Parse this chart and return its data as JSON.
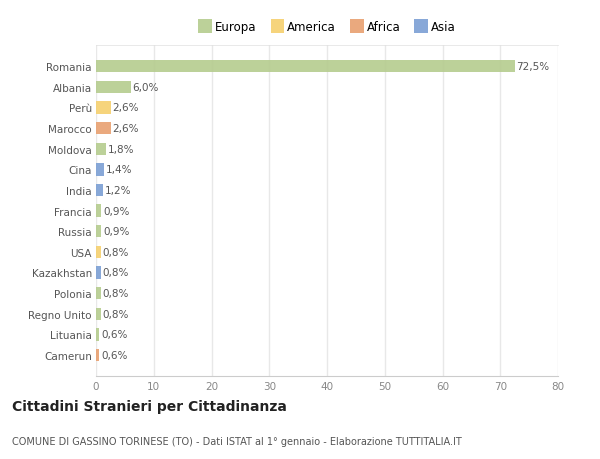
{
  "countries": [
    "Romania",
    "Albania",
    "Perù",
    "Marocco",
    "Moldova",
    "Cina",
    "India",
    "Francia",
    "Russia",
    "USA",
    "Kazakhstan",
    "Polonia",
    "Regno Unito",
    "Lituania",
    "Camerun"
  ],
  "values": [
    72.5,
    6.0,
    2.6,
    2.6,
    1.8,
    1.4,
    1.2,
    0.9,
    0.9,
    0.8,
    0.8,
    0.8,
    0.8,
    0.6,
    0.6
  ],
  "labels": [
    "72,5%",
    "6,0%",
    "2,6%",
    "2,6%",
    "1,8%",
    "1,4%",
    "1,2%",
    "0,9%",
    "0,9%",
    "0,8%",
    "0,8%",
    "0,8%",
    "0,8%",
    "0,6%",
    "0,6%"
  ],
  "colors": [
    "#b5cc8e",
    "#b5cc8e",
    "#f5d06e",
    "#e8a070",
    "#b5cc8e",
    "#7b9fd4",
    "#7b9fd4",
    "#b5cc8e",
    "#b5cc8e",
    "#f5d06e",
    "#7b9fd4",
    "#b5cc8e",
    "#b5cc8e",
    "#b5cc8e",
    "#e8a070"
  ],
  "legend_labels": [
    "Europa",
    "America",
    "Africa",
    "Asia"
  ],
  "legend_colors": [
    "#b5cc8e",
    "#f5d06e",
    "#e8a070",
    "#7b9fd4"
  ],
  "title": "Cittadini Stranieri per Cittadinanza",
  "subtitle": "COMUNE DI GASSINO TORINESE (TO) - Dati ISTAT al 1° gennaio - Elaborazione TUTTITALIA.IT",
  "xlim": [
    0,
    80
  ],
  "xticks": [
    0,
    10,
    20,
    30,
    40,
    50,
    60,
    70,
    80
  ],
  "background_color": "#ffffff",
  "plot_bg_color": "#ffffff",
  "grid_color": "#e8e8e8",
  "bar_height": 0.6,
  "label_fontsize": 7.5,
  "tick_fontsize": 7.5,
  "title_fontsize": 10,
  "subtitle_fontsize": 7
}
